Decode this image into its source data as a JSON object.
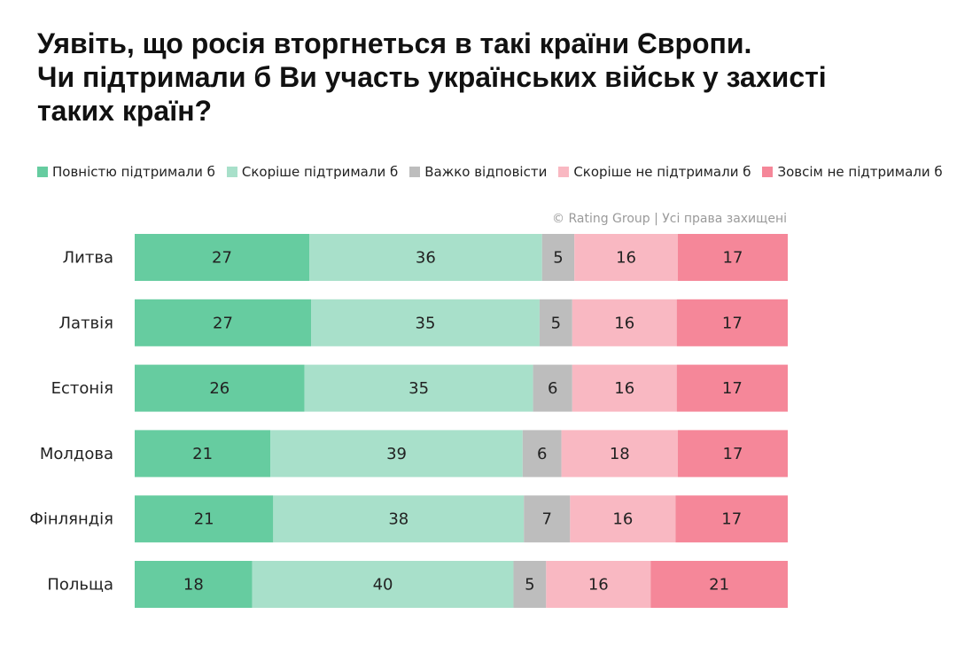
{
  "chart_data": {
    "type": "bar",
    "orientation": "horizontal",
    "stacked": true,
    "title_lines": [
      "Уявіть, що росія вторгнеться в такі країни Європи.",
      "Чи підтримали б Ви участь українських військ у захисті",
      "таких країн?"
    ],
    "credit": "© Rating Group | Усі права захищені",
    "legend_position": "top",
    "grid": false,
    "xlim": [
      0,
      100
    ],
    "categories": [
      "Литва",
      "Латвія",
      "Естонія",
      "Молдова",
      "Фінляндія",
      "Польща"
    ],
    "series": [
      {
        "name": "Повністю підтримали б",
        "color": "#66cca0",
        "values": [
          27,
          27,
          26,
          21,
          21,
          18
        ]
      },
      {
        "name": "Скоріше підтримали б",
        "color": "#a8e0ca",
        "values": [
          36,
          35,
          35,
          39,
          38,
          40
        ]
      },
      {
        "name": "Важко відповісти",
        "color": "#bdbdbd",
        "values": [
          5,
          5,
          6,
          6,
          7,
          5
        ]
      },
      {
        "name": "Скоріше не підтримали б",
        "color": "#f9b8c2",
        "values": [
          16,
          16,
          16,
          18,
          16,
          16
        ]
      },
      {
        "name": "Зовсім не підтримали б",
        "color": "#f58799",
        "values": [
          17,
          17,
          17,
          17,
          17,
          21
        ]
      }
    ]
  }
}
